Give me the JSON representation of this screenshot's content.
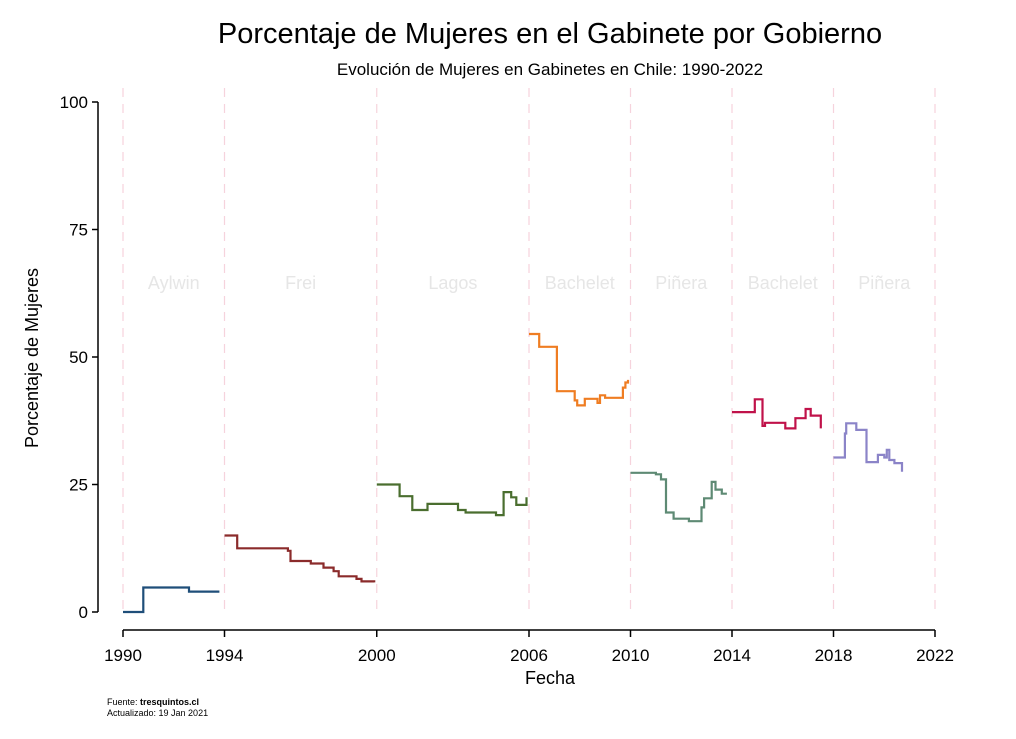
{
  "chart_data": {
    "type": "line",
    "title": "Porcentaje de Mujeres en el Gabinete por Gobierno",
    "subtitle": "Evolución de Mujeres en Gabinetes en Chile: 1990-2022",
    "xlabel": "Fecha",
    "ylabel": "Porcentaje de Mujeres",
    "xlim": [
      1990,
      2022
    ],
    "ylim": [
      0,
      100
    ],
    "x_ticks": [
      1990,
      1994,
      2000,
      2006,
      2010,
      2014,
      2018,
      2022
    ],
    "y_ticks": [
      0,
      25,
      50,
      75,
      100
    ],
    "grid": false,
    "line_style": "step",
    "period_boundaries": [
      1990,
      1994,
      2000,
      2006,
      2010,
      2014,
      2018,
      2022
    ],
    "periods": [
      {
        "label": "Aylwin",
        "start": 1990,
        "end": 1994
      },
      {
        "label": "Frei",
        "start": 1994,
        "end": 2000
      },
      {
        "label": "Lagos",
        "start": 2000,
        "end": 2006
      },
      {
        "label": "Bachelet",
        "start": 2006,
        "end": 2010
      },
      {
        "label": "Piñera",
        "start": 2010,
        "end": 2014
      },
      {
        "label": "Bachelet",
        "start": 2014,
        "end": 2018
      },
      {
        "label": "Piñera",
        "start": 2018,
        "end": 2022
      }
    ],
    "series": [
      {
        "color": "#1f4e79",
        "x": [
          1990.0,
          1990.8,
          1992.6,
          1993.8
        ],
        "y": [
          0,
          4.8,
          4.0,
          4.0
        ]
      },
      {
        "color": "#8b2b2b",
        "x": [
          1994.0,
          1994.5,
          1996.5,
          1996.6,
          1997.4,
          1997.9,
          1998.3,
          1998.5,
          1999.2,
          1999.4,
          1999.9
        ],
        "y": [
          15.0,
          12.5,
          12.0,
          10.0,
          9.5,
          8.7,
          8.0,
          7.0,
          6.5,
          6.0,
          5.8
        ]
      },
      {
        "color": "#4a6e2f",
        "x": [
          2000.0,
          2000.9,
          2001.4,
          2002.0,
          2003.2,
          2003.5,
          2004.7,
          2005.0,
          2005.3,
          2005.5,
          2005.9
        ],
        "y": [
          25.0,
          22.7,
          20.0,
          21.2,
          20.0,
          19.5,
          19.0,
          23.5,
          22.5,
          21.0,
          22.5
        ]
      },
      {
        "color": "#ef7d22",
        "x": [
          2006.0,
          2006.4,
          2007.1,
          2007.8,
          2007.9,
          2008.2,
          2008.7,
          2008.8,
          2009.0,
          2009.7,
          2009.8,
          2009.9
        ],
        "y": [
          54.5,
          52.0,
          43.3,
          41.5,
          40.5,
          41.8,
          41.0,
          42.5,
          42.0,
          44.0,
          45.0,
          45.5
        ]
      },
      {
        "color": "#5e8a74",
        "x": [
          2010.0,
          2011.0,
          2011.2,
          2011.4,
          2011.7,
          2012.3,
          2012.8,
          2012.9,
          2013.2,
          2013.35,
          2013.6,
          2013.8
        ],
        "y": [
          27.3,
          27.0,
          26.0,
          19.5,
          18.3,
          17.8,
          20.5,
          22.3,
          25.5,
          24.0,
          23.2,
          23.2
        ]
      },
      {
        "color": "#c0124a",
        "x": [
          2014.0,
          2014.9,
          2015.2,
          2015.3,
          2016.1,
          2016.5,
          2016.9,
          2017.1,
          2017.5
        ],
        "y": [
          39.2,
          41.7,
          36.5,
          37.1,
          36.0,
          38.0,
          39.8,
          38.5,
          36.0
        ]
      },
      {
        "color": "#8b84c8",
        "x": [
          2018.0,
          2018.45,
          2018.5,
          2018.9,
          2019.3,
          2019.75,
          2020.0,
          2020.1,
          2020.2,
          2020.4,
          2020.7
        ],
        "y": [
          30.3,
          35.0,
          37.0,
          35.7,
          29.4,
          30.8,
          30.3,
          31.8,
          29.8,
          29.2,
          27.5
        ]
      }
    ]
  },
  "source": {
    "prefix": "Fuente: ",
    "site": "tresquintos.cl",
    "updated": "Actualizado: 19 Jan 2021"
  }
}
